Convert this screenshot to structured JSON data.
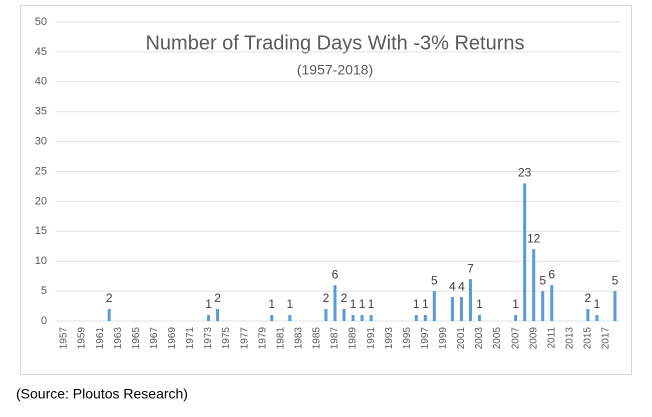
{
  "chart_data": {
    "type": "bar",
    "title": "Number of Trading Days With -3% Returns",
    "subtitle": "(1957-2018)",
    "source": "(Source: Ploutos Research)",
    "categories": [
      "1957",
      null,
      "1959",
      null,
      "1961",
      null,
      "1963",
      null,
      "1965",
      null,
      "1967",
      null,
      "1969",
      null,
      "1971",
      null,
      "1973",
      null,
      "1975",
      null,
      "1977",
      null,
      "1979",
      null,
      "1981",
      null,
      "1983",
      null,
      "1985",
      null,
      "1987",
      null,
      "1989",
      null,
      "1991",
      null,
      "1993",
      null,
      "1995",
      null,
      "1997",
      null,
      "1999",
      null,
      "2001",
      null,
      "2003",
      null,
      "2005",
      null,
      "2007",
      null,
      "2009",
      null,
      "2011",
      null,
      "2013",
      null,
      "2015",
      null,
      "2017",
      null
    ],
    "values": [
      0,
      0,
      0,
      0,
      0,
      2,
      0,
      0,
      0,
      0,
      0,
      0,
      0,
      0,
      0,
      0,
      1,
      2,
      0,
      0,
      0,
      0,
      0,
      1,
      0,
      1,
      0,
      0,
      0,
      2,
      6,
      2,
      1,
      1,
      1,
      0,
      0,
      0,
      0,
      1,
      1,
      5,
      0,
      4,
      4,
      7,
      1,
      0,
      0,
      0,
      1,
      23,
      12,
      5,
      6,
      0,
      0,
      0,
      2,
      1,
      0,
      5
    ],
    "color": "#5b9bd5",
    "ylim": [
      0,
      50
    ],
    "yticks": [
      0,
      5,
      10,
      15,
      20,
      25,
      30,
      35,
      40,
      45,
      50
    ],
    "grid": true
  }
}
